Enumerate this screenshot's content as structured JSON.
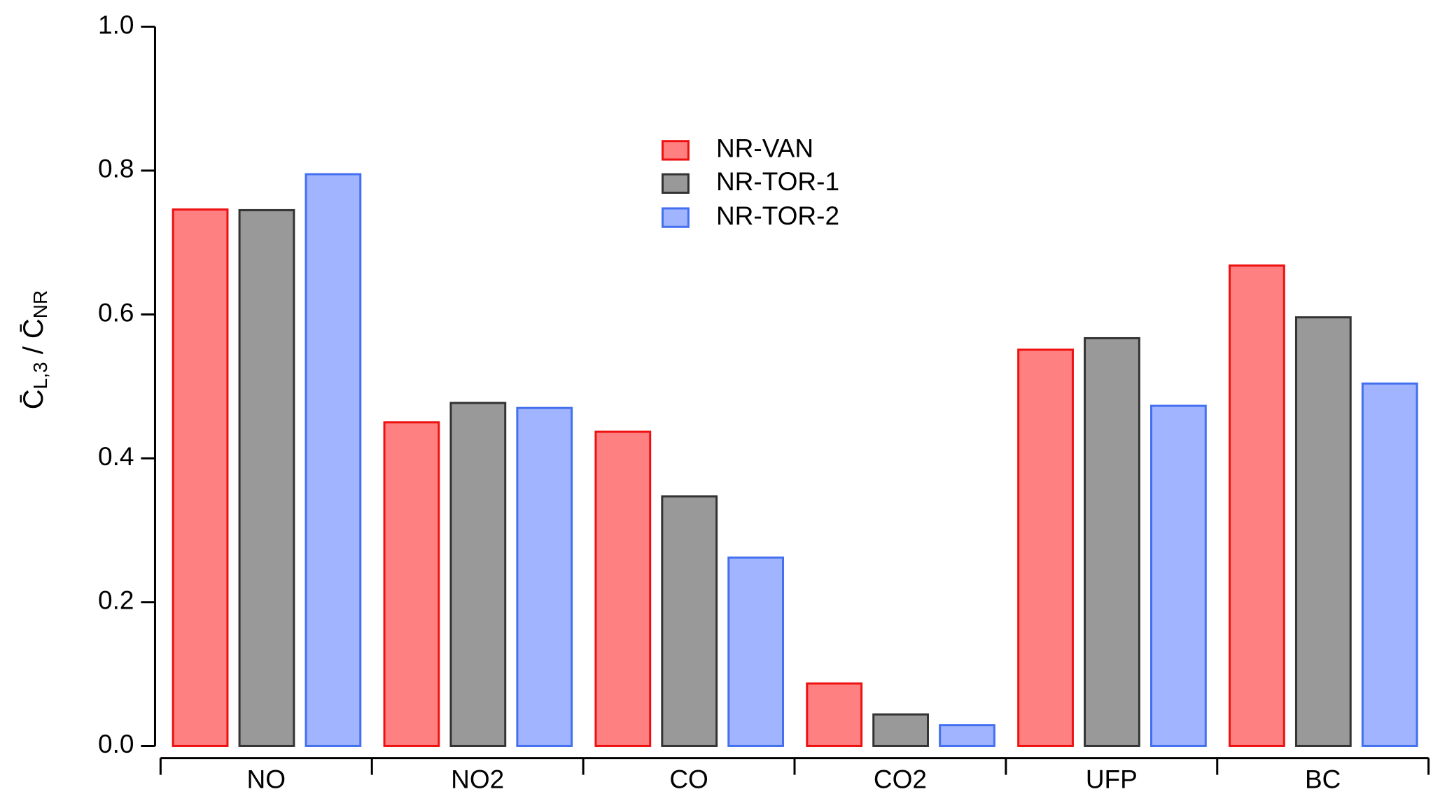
{
  "chart_data": {
    "type": "bar",
    "ylabel": {
      "main1": "C̄",
      "sub1": "L,3",
      "main2": " / C̄",
      "sub2": "NR"
    },
    "categories": [
      "NO",
      "NO2",
      "CO",
      "CO2",
      "UFP",
      "BC"
    ],
    "series": [
      {
        "name": "NR-VAN",
        "color": "#ff8080",
        "edge": "#ee1111",
        "values": [
          0.746,
          0.45,
          0.437,
          0.087,
          0.551,
          0.668
        ]
      },
      {
        "name": "NR-TOR-1",
        "color": "#999999",
        "edge": "#333333",
        "values": [
          0.745,
          0.477,
          0.347,
          0.044,
          0.567,
          0.596
        ]
      },
      {
        "name": "NR-TOR-2",
        "color": "#a0b4ff",
        "edge": "#4470f0",
        "values": [
          0.795,
          0.47,
          0.262,
          0.029,
          0.473,
          0.504
        ]
      }
    ],
    "ylim": [
      0,
      1
    ],
    "yticks": [
      {
        "value": 0,
        "label": "0.0"
      },
      0.2,
      0.4,
      0.6,
      0.8,
      {
        "value": 1,
        "label": "1.0"
      }
    ],
    "grid": false,
    "legend": "top-center"
  }
}
